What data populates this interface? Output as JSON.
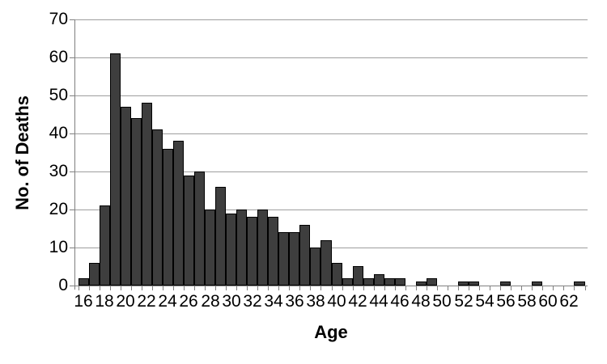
{
  "chart_data": {
    "type": "bar",
    "title": "",
    "ylabel": "No. of Deaths",
    "xlabel": "Age",
    "categories": [
      16,
      17,
      18,
      19,
      20,
      21,
      22,
      23,
      24,
      25,
      26,
      27,
      28,
      29,
      30,
      31,
      32,
      33,
      34,
      35,
      36,
      37,
      38,
      39,
      40,
      41,
      42,
      43,
      44,
      45,
      46,
      47,
      48,
      49,
      50,
      51,
      52,
      53,
      54,
      55,
      56,
      57,
      58,
      59,
      60,
      61,
      62,
      63
    ],
    "values": [
      2,
      6,
      21,
      61,
      47,
      44,
      48,
      41,
      36,
      38,
      29,
      30,
      20,
      26,
      19,
      20,
      18,
      20,
      18,
      14,
      14,
      16,
      10,
      12,
      6,
      2,
      5,
      2,
      3,
      2,
      2,
      0,
      1,
      2,
      0,
      0,
      1,
      1,
      0,
      0,
      1,
      0,
      0,
      1,
      0,
      0,
      0,
      1
    ],
    "ylim": [
      0,
      70
    ],
    "yticks": [
      0,
      10,
      20,
      30,
      40,
      50,
      60,
      70
    ],
    "xtick_labels": [
      16,
      18,
      20,
      22,
      24,
      26,
      28,
      30,
      32,
      34,
      36,
      38,
      40,
      42,
      44,
      46,
      48,
      50,
      52,
      54,
      56,
      58,
      60,
      62
    ],
    "grid": "horizontal",
    "legend": "none",
    "colors": {
      "bar_fill": "#3E3E3E",
      "bar_border": "#000000",
      "gridline": "#9E9E9E",
      "axis": "#808080",
      "text": "#000000",
      "background": "#FFFFFF"
    }
  }
}
